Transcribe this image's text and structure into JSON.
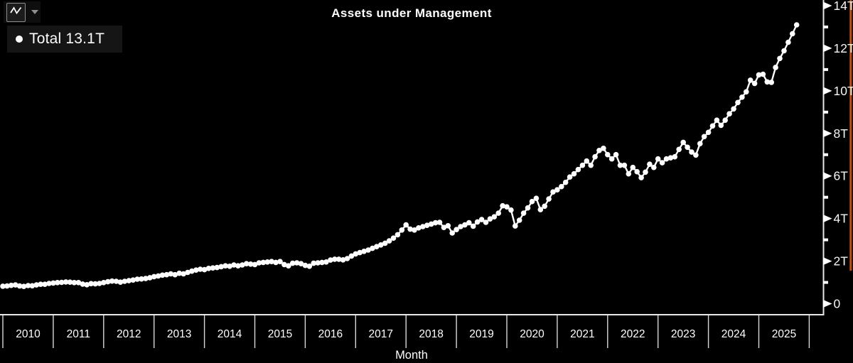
{
  "header": {
    "title": "Assets under Management"
  },
  "toolbar": {
    "chart_type_icon": "line-chart-icon",
    "dropdown_icon": "caret-down-icon"
  },
  "legend": {
    "label": "Total 13.1T",
    "series_name": "Total",
    "last_value": "13.1T",
    "marker_color": "#ffffff"
  },
  "colors": {
    "background": "#000000",
    "series_line": "#ffffff",
    "axis": "#e8e8e8",
    "tick_line": "#d8d8d8",
    "label_text": "#f5f5f5",
    "accent_stripe_bright": "#ff7a1a",
    "accent_stripe_dark": "#5f0e00"
  },
  "chart_data": {
    "type": "line",
    "title": "Assets under Management",
    "xlabel": "Month",
    "ylabel": "",
    "unit": "trillions (T)",
    "grid": false,
    "legend_position": "top-left",
    "marker": "circle",
    "x_start": {
      "year": 2010,
      "month": 1
    },
    "x_end": {
      "year": 2025,
      "month": 10
    },
    "x_year_labels": [
      "2010",
      "2011",
      "2012",
      "2013",
      "2014",
      "2015",
      "2016",
      "2017",
      "2018",
      "2019",
      "2020",
      "2021",
      "2022",
      "2023",
      "2024",
      "2025"
    ],
    "y_ticks": {
      "values": [
        0,
        2,
        4,
        6,
        8,
        10,
        12,
        14
      ],
      "labels": [
        "0",
        "2T",
        "4T",
        "6T",
        "8T",
        "10T",
        "12T",
        "14T"
      ]
    },
    "ylim": [
      0,
      14.3
    ],
    "series": [
      {
        "name": "Total",
        "last_value_label": "13.1T",
        "monthly_values": [
          0.82,
          0.83,
          0.86,
          0.88,
          0.83,
          0.81,
          0.85,
          0.84,
          0.88,
          0.91,
          0.91,
          0.95,
          0.97,
          0.99,
          1.0,
          1.02,
          1.01,
          0.99,
          0.99,
          0.92,
          0.89,
          0.94,
          0.93,
          0.95,
          0.99,
          1.03,
          1.06,
          1.05,
          1.01,
          1.05,
          1.08,
          1.11,
          1.15,
          1.16,
          1.18,
          1.22,
          1.27,
          1.3,
          1.34,
          1.36,
          1.4,
          1.36,
          1.43,
          1.4,
          1.47,
          1.53,
          1.58,
          1.62,
          1.6,
          1.66,
          1.68,
          1.7,
          1.74,
          1.78,
          1.76,
          1.82,
          1.78,
          1.82,
          1.88,
          1.86,
          1.84,
          1.92,
          1.94,
          1.96,
          1.98,
          1.94,
          1.98,
          1.84,
          1.78,
          1.9,
          1.92,
          1.88,
          1.8,
          1.76,
          1.9,
          1.92,
          1.94,
          1.96,
          2.05,
          2.09,
          2.09,
          2.06,
          2.12,
          2.24,
          2.34,
          2.4,
          2.46,
          2.52,
          2.6,
          2.68,
          2.76,
          2.84,
          2.95,
          3.08,
          3.24,
          3.46,
          3.7,
          3.5,
          3.46,
          3.56,
          3.62,
          3.68,
          3.74,
          3.8,
          3.82,
          3.58,
          3.66,
          3.32,
          3.48,
          3.62,
          3.7,
          3.8,
          3.64,
          3.84,
          3.95,
          3.82,
          3.98,
          4.08,
          4.25,
          4.6,
          4.55,
          4.4,
          3.65,
          3.92,
          4.25,
          4.5,
          4.8,
          4.95,
          4.42,
          4.58,
          4.92,
          5.25,
          5.35,
          5.5,
          5.7,
          5.95,
          6.1,
          6.3,
          6.5,
          6.7,
          6.5,
          6.9,
          7.2,
          7.3,
          7.0,
          6.8,
          7.0,
          6.5,
          6.5,
          6.1,
          6.4,
          6.2,
          5.92,
          6.18,
          6.55,
          6.4,
          6.8,
          6.62,
          6.8,
          6.85,
          6.9,
          7.25,
          7.58,
          7.35,
          7.12,
          6.98,
          7.52,
          7.85,
          8.05,
          8.35,
          8.62,
          8.38,
          8.62,
          8.92,
          9.15,
          9.45,
          9.7,
          9.95,
          10.5,
          10.35,
          10.75,
          10.78,
          10.42,
          10.4,
          11.1,
          11.52,
          11.88,
          12.28,
          12.68,
          13.1
        ]
      }
    ]
  }
}
